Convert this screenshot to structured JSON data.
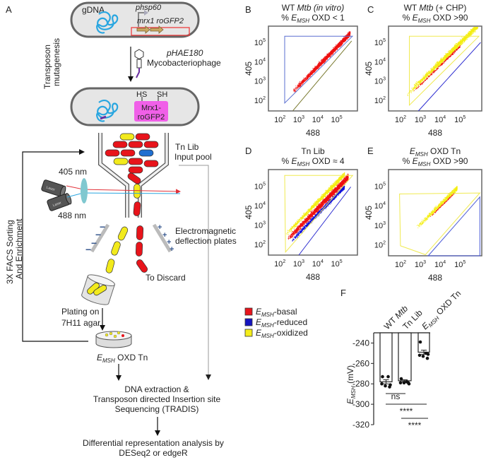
{
  "panel_labels": {
    "a": "A",
    "b": "B",
    "c": "C",
    "d": "D",
    "e": "E",
    "f": "F"
  },
  "schematic": {
    "cell1": {
      "gdna": "gDNA",
      "promoter_p": "p",
      "promoter_name": "hsp60",
      "genes": "mrx1 roGFP2"
    },
    "mutagenesis_1": "Transposon",
    "mutagenesis_2": "mutagenesis",
    "phage_name": "pHAE180",
    "phage_type": "Mycobacteriophage",
    "cell2": {
      "hs": "HS",
      "sh": "SH",
      "protein_1": "Mrx1-",
      "protein_2": "roGFP2"
    },
    "input_pool_1": "Tn Lib",
    "input_pool_2": "Input pool",
    "laser_405": "405 nm",
    "laser_488": "488 nm",
    "laser_tag": "Laser",
    "sorting_1": "3X FACS Sorting",
    "sorting_2": "And  Enrichment",
    "deflection_1": "Electromagnetic",
    "deflection_2": "deflection plates",
    "minus": "−",
    "plus": "+",
    "discard": "To Discard",
    "plating_1": "Plating on",
    "plating_2": "7H11 agar",
    "oxd_e": "E",
    "oxd_sub": "MSH",
    "oxd_rest": " OXD Tn",
    "step_dna_1": "DNA  extraction &",
    "step_dna_2": "Transposon directed Insertion site",
    "step_dna_3": "Sequencing (TRADIS)",
    "step_analysis_1": "Differential representation analysis by",
    "step_analysis_2": "DESeq2 or edgeR"
  },
  "legend": [
    {
      "e": "E",
      "sub": "MSH",
      "label": "-basal",
      "color": "#e8141b"
    },
    {
      "e": "E",
      "sub": "MSH",
      "label": "-reduced",
      "color": "#1515c0"
    },
    {
      "e": "E",
      "sub": "MSH",
      "label": "-oxidized",
      "color": "#f5ee1a"
    }
  ],
  "chart_data": [
    {
      "id": "B",
      "type": "scatter",
      "scale": "log",
      "title_1": [
        {
          "t": "WT ",
          "i": false
        },
        {
          "t": "Mtb (in vitro)",
          "i": true
        }
      ],
      "title_2": {
        "pre": "% ",
        "e": "E",
        "sub": "MSH",
        "post": " OXD < 1"
      },
      "xlabel": "488",
      "ylabel": "405",
      "xticks": [
        {
          "base": "10",
          "exp": "2",
          "v": 100
        },
        {
          "base": "10",
          "exp": "3",
          "v": 1000
        },
        {
          "base": "10",
          "exp": "4",
          "v": 10000
        },
        {
          "base": "10",
          "exp": "5",
          "v": 100000
        }
      ],
      "yticks": [
        {
          "base": "10",
          "exp": "2",
          "v": 100
        },
        {
          "base": "10",
          "exp": "3",
          "v": 1000
        },
        {
          "base": "10",
          "exp": "4",
          "v": 10000
        },
        {
          "base": "10",
          "exp": "5",
          "v": 100000
        }
      ],
      "xlim": [
        25,
        1250000
      ],
      "ylim": [
        28,
        700000
      ],
      "populations": [
        "basal"
      ],
      "gates": [
        {
          "color": "#5a6fd0",
          "closed": true,
          "points": [
            [
              180,
              210000
            ],
            [
              680000,
              210000
            ],
            [
              180,
              72
            ]
          ]
        },
        {
          "color": "#7a7a30",
          "closed": false,
          "points": [
            [
              490,
              29
            ],
            [
              620000,
              120000
            ]
          ]
        }
      ]
    },
    {
      "id": "C",
      "type": "scatter",
      "scale": "log",
      "title_1": [
        {
          "t": "WT ",
          "i": false
        },
        {
          "t": "Mtb",
          "i": true
        },
        {
          "t": " (+ CHP)",
          "i": false
        }
      ],
      "title_2": {
        "pre": "% ",
        "e": "E",
        "sub": "MSH",
        "post": " OXD >90"
      },
      "xlabel": "488",
      "ylabel": "405",
      "xticks": [
        {
          "base": "10",
          "exp": "2",
          "v": 100
        },
        {
          "base": "10",
          "exp": "3",
          "v": 1000
        },
        {
          "base": "10",
          "exp": "4",
          "v": 10000
        },
        {
          "base": "10",
          "exp": "5",
          "v": 100000
        }
      ],
      "yticks": [
        {
          "base": "10",
          "exp": "2",
          "v": 100
        },
        {
          "base": "10",
          "exp": "3",
          "v": 1000
        },
        {
          "base": "10",
          "exp": "4",
          "v": 10000
        },
        {
          "base": "10",
          "exp": "5",
          "v": 100000
        }
      ],
      "xlim": [
        25,
        1250000
      ],
      "ylim": [
        28,
        700000
      ],
      "populations": [
        "oxidized",
        "basal"
      ],
      "gates": [
        {
          "color": "#f0ea50",
          "closed": true,
          "points": [
            [
              280,
              210000
            ],
            [
              900000,
              210000
            ],
            [
              280,
              56
            ]
          ]
        },
        {
          "color": "#2a2ad0",
          "closed": false,
          "points": [
            [
              800,
              28
            ],
            [
              1100000,
              100000
            ]
          ]
        }
      ]
    },
    {
      "id": "D",
      "type": "scatter",
      "scale": "log",
      "title_1": [
        {
          "t": "Tn Lib",
          "i": false
        }
      ],
      "title_2": {
        "pre": "% ",
        "e": "E",
        "sub": "MSH",
        "post": " OXD ≈ 4"
      },
      "xlabel": "488",
      "ylabel": "405",
      "xticks": [
        {
          "base": "10",
          "exp": "2",
          "v": 100
        },
        {
          "base": "10",
          "exp": "3",
          "v": 1000
        },
        {
          "base": "10",
          "exp": "4",
          "v": 10000
        },
        {
          "base": "10",
          "exp": "5",
          "v": 100000
        }
      ],
      "yticks": [
        {
          "base": "10",
          "exp": "2",
          "v": 100
        },
        {
          "base": "10",
          "exp": "3",
          "v": 1000
        },
        {
          "base": "10",
          "exp": "4",
          "v": 10000
        },
        {
          "base": "10",
          "exp": "5",
          "v": 100000
        }
      ],
      "xlim": [
        25,
        1250000
      ],
      "ylim": [
        28,
        700000
      ],
      "populations": [
        "reduced",
        "oxidized",
        "basal"
      ],
      "gates": [
        {
          "color": "#f0ea50",
          "closed": true,
          "points": [
            [
              180,
              350000
            ],
            [
              700000,
              350000
            ],
            [
              200,
              40
            ]
          ]
        },
        {
          "color": "#2a2ad0",
          "closed": false,
          "points": [
            [
              1000,
              28
            ],
            [
              560000,
              90000
            ]
          ]
        }
      ]
    },
    {
      "id": "E",
      "type": "scatter",
      "scale": "log",
      "title_1": [
        {
          "e": "E",
          "sub": "MSH",
          "t": " OXD Tn",
          "i": false
        }
      ],
      "title_2": {
        "pre": "% ",
        "e": "E",
        "sub": "MSH",
        "post": " OXD  >90"
      },
      "xlabel": "488",
      "ylabel": "405",
      "xticks": [
        {
          "base": "10",
          "exp": "2",
          "v": 100
        },
        {
          "base": "10",
          "exp": "3",
          "v": 1000
        },
        {
          "base": "10",
          "exp": "4",
          "v": 10000
        },
        {
          "base": "10",
          "exp": "5",
          "v": 100000
        }
      ],
      "yticks": [
        {
          "base": "10",
          "exp": "2",
          "v": 100
        },
        {
          "base": "10",
          "exp": "3",
          "v": 1000
        },
        {
          "base": "10",
          "exp": "4",
          "v": 10000
        },
        {
          "base": "10",
          "exp": "5",
          "v": 100000
        }
      ],
      "xlim": [
        25,
        1250000
      ],
      "ylim": [
        28,
        700000
      ],
      "populations": [
        "oxidized",
        "basal"
      ],
      "gates": [
        {
          "color": "#f0ea50",
          "closed": true,
          "points": [
            [
              90,
              40000
            ],
            [
              1000000,
              45000
            ],
            [
              1800,
              32
            ],
            [
              100,
              90
            ]
          ]
        },
        {
          "color": "#4a5ad8",
          "closed": true,
          "points": [
            [
              2500,
              28
            ],
            [
              1000000,
              28000
            ],
            [
              1000000,
              28
            ]
          ]
        }
      ]
    },
    {
      "id": "F",
      "type": "bar",
      "categories": [
        {
          "t": "WT ",
          "it": "Mtb"
        },
        {
          "t": "Tn Lib"
        },
        {
          "e": "E",
          "sub": "MSH",
          "t": " OXD Tn"
        }
      ],
      "values": [
        -278,
        -277,
        -249
      ],
      "sem": [
        2,
        1,
        2
      ],
      "points": [
        [
          -273,
          -273,
          -280,
          -282,
          -283,
          -281
        ],
        [
          -275,
          -278,
          -279,
          -279,
          -279,
          -280
        ],
        [
          -239,
          -250,
          -252,
          -253,
          -255,
          -251
        ]
      ],
      "ylabel": {
        "e": "E",
        "sub": "MSH",
        "post": " (mV)"
      },
      "yticks": [
        -240,
        -260,
        -280,
        -300,
        -320
      ],
      "ylim": [
        -320,
        -230
      ],
      "significance": [
        {
          "pair": [
            0,
            1
          ],
          "label": "ns"
        },
        {
          "pair": [
            0,
            2
          ],
          "label": "****"
        },
        {
          "pair": [
            1,
            2
          ],
          "label": "****"
        }
      ]
    }
  ]
}
